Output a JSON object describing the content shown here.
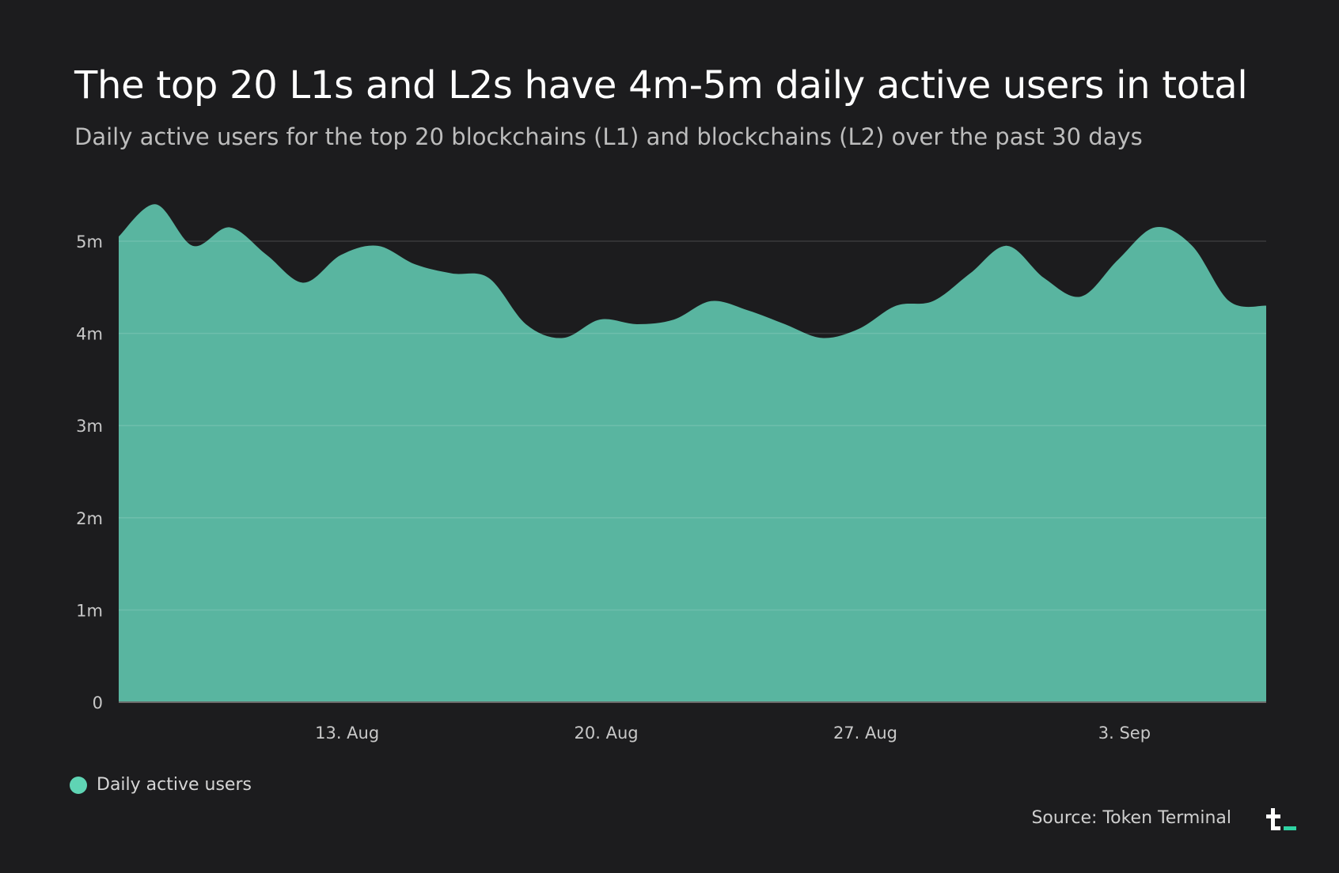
{
  "title": "The top 20 L1s and L2s have 4m-5m daily active users in total",
  "subtitle": "Daily active users for the top 20 blockchains (L1) and blockchains (L2) over the past 30 days",
  "legend_label": "Daily active users",
  "source": "Source: Token Terminal",
  "logo_name": "token-terminal-logo",
  "colors": {
    "background": "#1c1c1e",
    "area": "#59b5a0",
    "legend": "#5fd4b4",
    "logo_accent": "#2fd3a3",
    "grid": "#3a3a3c",
    "axis_text": "#c8c8c8"
  },
  "chart_data": {
    "type": "area",
    "title": "The top 20 L1s and L2s have 4m-5m daily active users in total",
    "xlabel": "",
    "ylabel": "",
    "ylim": [
      0,
      5400000
    ],
    "yticks": [
      0,
      1000000,
      2000000,
      3000000,
      4000000,
      5000000
    ],
    "ytick_labels": [
      "0",
      "1m",
      "2m",
      "3m",
      "4m",
      "5m"
    ],
    "x_start": "2023-08-07",
    "x_end": "2023-09-07",
    "xticks": [
      {
        "date": "2023-08-13",
        "label": "13. Aug"
      },
      {
        "date": "2023-08-20",
        "label": "20. Aug"
      },
      {
        "date": "2023-08-27",
        "label": "27. Aug"
      },
      {
        "date": "2023-09-03",
        "label": "3. Sep"
      }
    ],
    "grid": true,
    "legend_position": "bottom-left",
    "series": [
      {
        "name": "Daily active users",
        "x": [
          "2023-08-07",
          "2023-08-08",
          "2023-08-09",
          "2023-08-10",
          "2023-08-11",
          "2023-08-12",
          "2023-08-13",
          "2023-08-14",
          "2023-08-15",
          "2023-08-16",
          "2023-08-17",
          "2023-08-18",
          "2023-08-19",
          "2023-08-20",
          "2023-08-21",
          "2023-08-22",
          "2023-08-23",
          "2023-08-24",
          "2023-08-25",
          "2023-08-26",
          "2023-08-27",
          "2023-08-28",
          "2023-08-29",
          "2023-08-30",
          "2023-08-31",
          "2023-09-01",
          "2023-09-02",
          "2023-09-03",
          "2023-09-04",
          "2023-09-05",
          "2023-09-06",
          "2023-09-07"
        ],
        "values": [
          5050000,
          5400000,
          4950000,
          5150000,
          4850000,
          4550000,
          4850000,
          4950000,
          4750000,
          4650000,
          4600000,
          4100000,
          3950000,
          4150000,
          4100000,
          4150000,
          4350000,
          4250000,
          4100000,
          3950000,
          4050000,
          4300000,
          4350000,
          4650000,
          4950000,
          4600000,
          4400000,
          4800000,
          5150000,
          4950000,
          4350000,
          4300000
        ]
      }
    ]
  }
}
